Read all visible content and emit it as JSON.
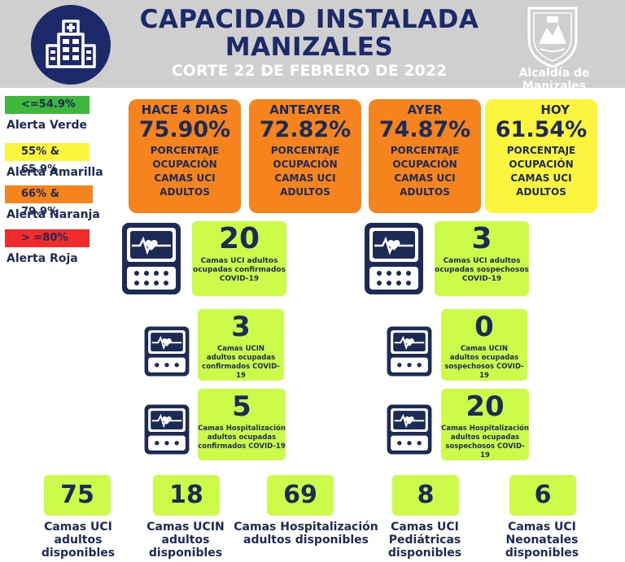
{
  "header": {
    "title_line1": "CAPACIDAD INSTALADA",
    "title_line2": "MANIZALES",
    "subtitle": "CORTE 22 DE FEBRERO DE 2022",
    "logo_text": "Alcaldía de Manizales",
    "bg_color": "#cfcfcf",
    "title_color": "#1c2a6a"
  },
  "legend": [
    {
      "range": "<=54.9%",
      "label": "Alerta Verde",
      "color": "#3db83a"
    },
    {
      "range": "55% & 65.9%",
      "label": "Alerta Amarilla",
      "color": "#fbf53d"
    },
    {
      "range": "66% & 79.9%",
      "label": "Alerta Naranja",
      "color": "#f5841f"
    },
    {
      "range": "> =80%",
      "label": "Alerta Roja",
      "color": "#f22b2b"
    }
  ],
  "occupancy": [
    {
      "head": "HACE 4 DIAS",
      "value": "75.90%",
      "desc": [
        "PORCENTAJE",
        "OCUPACIÓN",
        "CAMAS UCI",
        "ADULTOS"
      ],
      "color": "orange"
    },
    {
      "head": "ANTEAYER",
      "value": "72.82%",
      "desc": [
        "PORCENTAJE",
        "OCUPACIÓN",
        "CAMAS UCI",
        "ADULTOS"
      ],
      "color": "orange"
    },
    {
      "head": "AYER",
      "value": "74.87%",
      "desc": [
        "PORCENTAJE",
        "OCUPACIÓN",
        "CAMAS UCI",
        "ADULTOS"
      ],
      "color": "orange"
    },
    {
      "head": "HOY",
      "value": "61.54%",
      "desc": [
        "PORCENTAJE",
        "OCUPACIÓN",
        "CAMAS UCI",
        "ADULTOS"
      ],
      "color": "yellow"
    }
  ],
  "stats": {
    "uci_confirmados": {
      "num": "20",
      "cap": [
        "Camas UCI adultos",
        "ocupadas confirmados",
        "COVID-19"
      ]
    },
    "uci_sospechosos": {
      "num": "3",
      "cap": [
        "Camas UCI adultos",
        "ocupadas sospechosos",
        "COVID-19"
      ]
    },
    "ucin_confirmados": {
      "num": "3",
      "cap": [
        "Camas  UCIN",
        "adultos ocupadas",
        "confirmados COVID-19"
      ]
    },
    "ucin_sospechosos": {
      "num": "0",
      "cap": [
        "Camas  UCIN",
        "adultos ocupadas",
        "sospechosos COVID-19"
      ]
    },
    "hosp_confirmados": {
      "num": "5",
      "cap": [
        "Camas  Hospitalización",
        "adultos ocupadas",
        "confirmados COVID-19"
      ]
    },
    "hosp_sospechosos": {
      "num": "20",
      "cap": [
        "Camas  Hospitalización",
        "adultos ocupadas",
        "sospechosos COVID-19"
      ]
    }
  },
  "available": [
    {
      "num": "75",
      "cap": [
        "Camas UCI",
        "adultos",
        "disponibles"
      ]
    },
    {
      "num": "18",
      "cap": [
        "Camas UCIN",
        "adultos",
        "disponibles"
      ]
    },
    {
      "num": "69",
      "cap": [
        "Camas  Hospitalización",
        "adultos disponibles"
      ]
    },
    {
      "num": "8",
      "cap": [
        "Camas  UCI",
        "Pediátricas",
        "disponibles"
      ]
    },
    {
      "num": "6",
      "cap": [
        "Camas  UCI",
        "Neonatales",
        "disponibles"
      ]
    }
  ]
}
